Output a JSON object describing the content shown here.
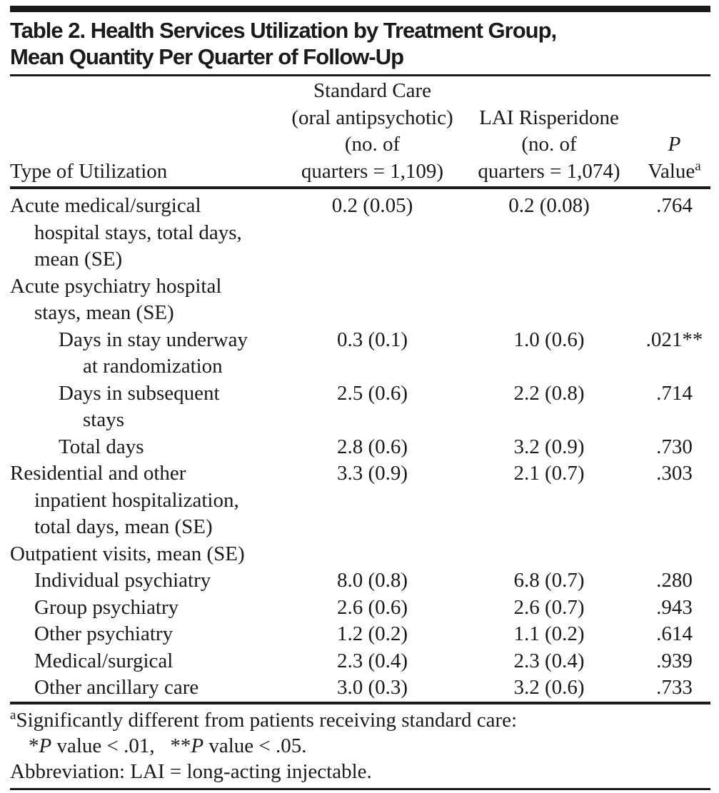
{
  "title": {
    "line1": "Table 2. Health Services Utilization by Treatment Group,",
    "line2": "Mean Quantity Per Quarter of Follow-Up"
  },
  "header": {
    "col1": "Type of Utilization",
    "col2_lines": [
      "Standard Care",
      "(oral antipsychotic)",
      "(no. of",
      "quarters = 1,109)"
    ],
    "col3_lines": [
      "LAI Risperidone",
      "(no. of",
      "quarters = 1,074)"
    ],
    "col4": {
      "line1": "P",
      "line2_base": "Value",
      "line2_sup": "a"
    }
  },
  "table": {
    "rows": [
      {
        "indent": 0,
        "label": "Acute medical/surgical",
        "std": "0.2 (0.05)",
        "lai": "0.2 (0.08)",
        "p": ".764"
      },
      {
        "indent": 1,
        "label": "hospital stays, total days,",
        "std": "",
        "lai": "",
        "p": ""
      },
      {
        "indent": 1,
        "label": "mean (SE)",
        "std": "",
        "lai": "",
        "p": ""
      },
      {
        "indent": 0,
        "label": "Acute psychiatry hospital",
        "std": "",
        "lai": "",
        "p": ""
      },
      {
        "indent": 1,
        "label": "stays, mean (SE)",
        "std": "",
        "lai": "",
        "p": ""
      },
      {
        "indent": 2,
        "label": "Days in stay underway",
        "std": "0.3 (0.1)",
        "lai": "1.0 (0.6)",
        "p": ".021**"
      },
      {
        "indent": 3,
        "label": "at randomization",
        "std": "",
        "lai": "",
        "p": ""
      },
      {
        "indent": 2,
        "label": "Days in subsequent",
        "std": "2.5 (0.6)",
        "lai": "2.2 (0.8)",
        "p": ".714"
      },
      {
        "indent": 3,
        "label": "stays",
        "std": "",
        "lai": "",
        "p": ""
      },
      {
        "indent": 2,
        "label": "Total days",
        "std": "2.8 (0.6)",
        "lai": "3.2 (0.9)",
        "p": ".730"
      },
      {
        "indent": 0,
        "label": "Residential and other",
        "std": "3.3 (0.9)",
        "lai": "2.1 (0.7)",
        "p": ".303"
      },
      {
        "indent": 1,
        "label": "inpatient hospitalization,",
        "std": "",
        "lai": "",
        "p": ""
      },
      {
        "indent": 1,
        "label": "total days, mean (SE)",
        "std": "",
        "lai": "",
        "p": ""
      },
      {
        "indent": 0,
        "label": "Outpatient visits, mean (SE)",
        "std": "",
        "lai": "",
        "p": ""
      },
      {
        "indent": 1,
        "label": "Individual psychiatry",
        "std": "8.0 (0.8)",
        "lai": "6.8 (0.7)",
        "p": ".280"
      },
      {
        "indent": 1,
        "label": "Group psychiatry",
        "std": "2.6 (0.6)",
        "lai": "2.6 (0.7)",
        "p": ".943"
      },
      {
        "indent": 1,
        "label": "Other psychiatry",
        "std": "1.2 (0.2)",
        "lai": "1.1 (0.2)",
        "p": ".614"
      },
      {
        "indent": 1,
        "label": "Medical/surgical",
        "std": "2.3 (0.4)",
        "lai": "2.3 (0.4)",
        "p": ".939"
      },
      {
        "indent": 1,
        "label": "Other ancillary care",
        "std": "3.0 (0.3)",
        "lai": "3.2 (0.6)",
        "p": ".733"
      }
    ]
  },
  "footnotes": {
    "line1_sup": "a",
    "line1": "Significantly different from patients receiving standard care:",
    "line2_parts": [
      {
        "text": "*"
      },
      {
        "text": "P",
        "italic": true
      },
      {
        "text": " value < .01,  "
      },
      {
        "text": "**"
      },
      {
        "text": "P",
        "italic": true
      },
      {
        "text": " value < .05."
      }
    ],
    "line3": "Abbreviation: LAI = long-acting injectable."
  },
  "colors": {
    "text": "#1a1a1a",
    "rule": "#1a1a1a",
    "background": "#ffffff"
  }
}
